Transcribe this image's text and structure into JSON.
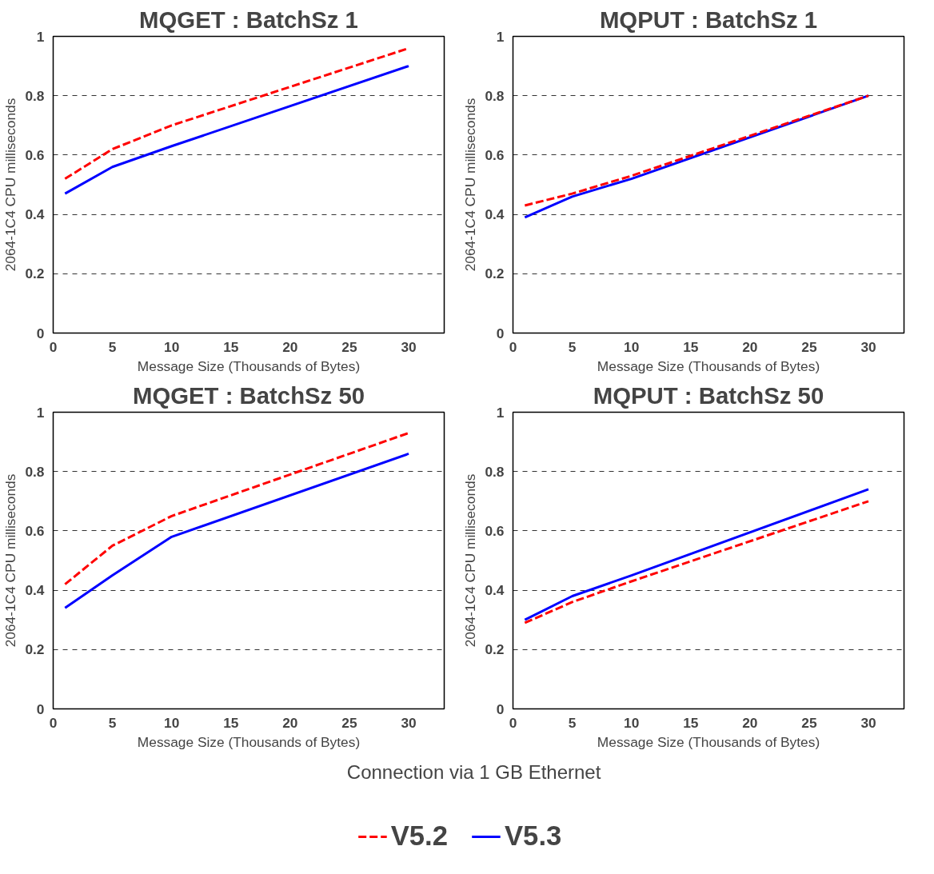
{
  "chart_data": [
    {
      "type": "line",
      "title": "MQGET : BatchSz 1",
      "xlabel": "Message Size (Thousands of Bytes)",
      "ylabel": "2064-1C4 CPU milliseconds",
      "x": [
        1,
        5,
        10,
        30
      ],
      "xlim": [
        0,
        33
      ],
      "xticks": [
        0,
        5,
        10,
        15,
        20,
        25,
        30
      ],
      "ylim": [
        0,
        1
      ],
      "yticks": [
        0,
        0.2,
        0.4,
        0.6,
        0.8,
        1
      ],
      "grid": "y",
      "series": [
        {
          "color": "#ff0000",
          "line_style": "dashed",
          "values": [
            0.52,
            0.62,
            0.7,
            0.96
          ]
        },
        {
          "color": "#0000ff",
          "line_style": "solid",
          "values": [
            0.47,
            0.56,
            0.63,
            0.9
          ]
        }
      ]
    },
    {
      "type": "line",
      "title": "MQPUT : BatchSz 1",
      "xlabel": "Message Size (Thousands of Bytes)",
      "ylabel": "2064-1C4 CPU milliseconds",
      "x": [
        1,
        5,
        10,
        30
      ],
      "xlim": [
        0,
        33
      ],
      "xticks": [
        0,
        5,
        10,
        15,
        20,
        25,
        30
      ],
      "ylim": [
        0,
        1
      ],
      "yticks": [
        0,
        0.2,
        0.4,
        0.6,
        0.8,
        1
      ],
      "grid": "y",
      "series": [
        {
          "color": "#ff0000",
          "line_style": "dashed",
          "values": [
            0.43,
            0.47,
            0.53,
            0.8
          ]
        },
        {
          "color": "#0000ff",
          "line_style": "solid",
          "values": [
            0.39,
            0.46,
            0.52,
            0.8
          ]
        }
      ]
    },
    {
      "type": "line",
      "title": "MQGET : BatchSz 50",
      "xlabel": "Message Size (Thousands of Bytes)",
      "ylabel": "2064-1C4 CPU milliseconds",
      "x": [
        1,
        5,
        10,
        30
      ],
      "xlim": [
        0,
        33
      ],
      "xticks": [
        0,
        5,
        10,
        15,
        20,
        25,
        30
      ],
      "ylim": [
        0,
        1
      ],
      "yticks": [
        0,
        0.2,
        0.4,
        0.6,
        0.8,
        1
      ],
      "grid": "y",
      "series": [
        {
          "color": "#ff0000",
          "line_style": "dashed",
          "values": [
            0.42,
            0.55,
            0.65,
            0.93
          ]
        },
        {
          "color": "#0000ff",
          "line_style": "solid",
          "values": [
            0.34,
            0.45,
            0.58,
            0.86
          ]
        }
      ]
    },
    {
      "type": "line",
      "title": "MQPUT : BatchSz 50",
      "xlabel": "Message Size (Thousands of Bytes)",
      "ylabel": "2064-1C4 CPU milliseconds",
      "x": [
        1,
        5,
        10,
        30
      ],
      "xlim": [
        0,
        33
      ],
      "xticks": [
        0,
        5,
        10,
        15,
        20,
        25,
        30
      ],
      "ylim": [
        0,
        1
      ],
      "yticks": [
        0,
        0.2,
        0.4,
        0.6,
        0.8,
        1
      ],
      "grid": "y",
      "legend": "bottom",
      "annotations": [
        "Connection via 1 GB Ethernet"
      ],
      "series": [
        {
          "name": "V5.2",
          "color": "#ff0000",
          "line_style": "dashed",
          "values": [
            0.29,
            0.36,
            0.43,
            0.7
          ]
        },
        {
          "name": "V5.3",
          "color": "#0000ff",
          "line_style": "solid",
          "values": [
            0.3,
            0.38,
            0.45,
            0.74
          ]
        }
      ]
    }
  ]
}
